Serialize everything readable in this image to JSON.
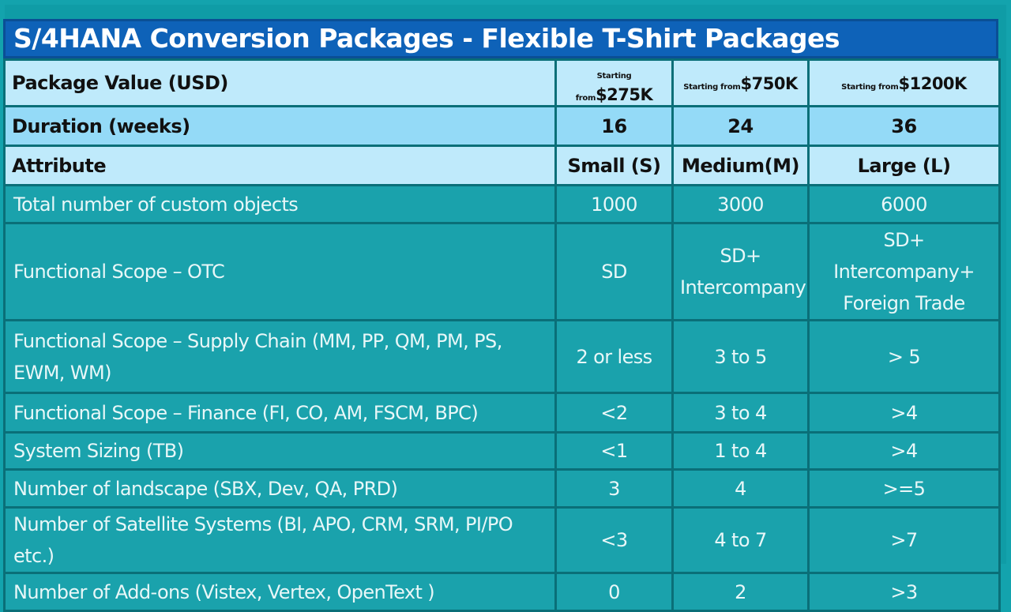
{
  "title": "S/4HANA Conversion Packages - Flexible T-Shirt Packages",
  "package_value": {
    "label": "Package Value (USD)",
    "values": [
      {
        "prefix": "Starting from",
        "amount": "$275K"
      },
      {
        "prefix": "Starting from",
        "amount": "$750K"
      },
      {
        "prefix": "Starting from",
        "amount": "$1200K"
      }
    ]
  },
  "duration": {
    "label": "Duration (weeks)",
    "values": [
      "16",
      "24",
      "36"
    ]
  },
  "attribute_header": {
    "label": "Attribute",
    "sizes": [
      "Small (S)",
      "Medium(M)",
      "Large (L)"
    ]
  },
  "rows": [
    {
      "label": "Total number of custom objects",
      "s": "1000",
      "m": "3000",
      "l": "6000"
    },
    {
      "label": "Functional Scope – OTC",
      "s": "SD",
      "m": "SD+ Intercompany",
      "l": "SD+ Intercompany+ Foreign Trade"
    },
    {
      "label": "Functional Scope – Supply Chain (MM, PP,  QM, PM, PS, EWM, WM)",
      "s": "2 or less",
      "m": "3 to 5",
      "l": "> 5"
    },
    {
      "label": "Functional Scope – Finance (FI, CO, AM, FSCM, BPC)",
      "s": "<2",
      "m": "3 to 4",
      "l": ">4"
    },
    {
      "label": "System Sizing (TB)",
      "s": "<1",
      "m": "1 to 4",
      "l": ">4"
    },
    {
      "label": "Number of landscape (SBX, Dev, QA, PRD)",
      "s": "3",
      "m": "4",
      "l": ">=5"
    },
    {
      "label": "Number of Satellite Systems (BI, APO, CRM, SRM, PI/PO etc.)",
      "s": "<3",
      "m": "4 to 7",
      "l": ">7"
    },
    {
      "label": "Number of Add-ons (Vistex, Vertex, OpenText )",
      "s": "0",
      "m": "2",
      "l": ">3"
    }
  ],
  "colors": {
    "title_bg": "#0e62b8",
    "header_light": "#bfeafb",
    "header_mid": "#94daf7",
    "body_bg": "#1aa2ac",
    "border": "#0a6f78"
  }
}
